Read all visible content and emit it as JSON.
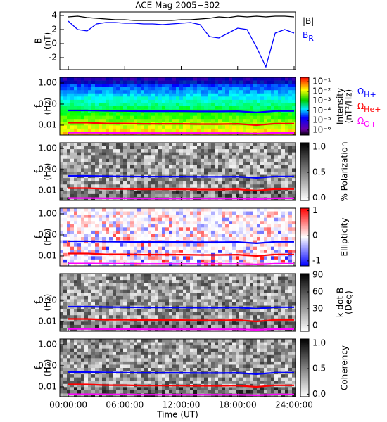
{
  "chart_data": [
    {
      "type": "line",
      "title": "ACE Mag 2005−302",
      "ylabel": [
        "B",
        "(nT)"
      ],
      "x": [
        0,
        1,
        2,
        3,
        4,
        5,
        6,
        7,
        8,
        9,
        10,
        11,
        12,
        13,
        14,
        15,
        16,
        17,
        18,
        19,
        20,
        21,
        22,
        23,
        24
      ],
      "xlim": [
        -0.9,
        24.15
      ],
      "ylim": [
        -3.7,
        4.5
      ],
      "yticks": [
        -2,
        0,
        2,
        4
      ],
      "series": [
        {
          "name": "|B|",
          "color": "#000000",
          "values": [
            3.8,
            3.9,
            3.7,
            3.6,
            3.5,
            3.4,
            3.4,
            3.3,
            3.3,
            3.3,
            3.3,
            3.3,
            3.4,
            3.4,
            3.5,
            3.6,
            3.8,
            3.7,
            3.9,
            3.8,
            3.9,
            3.8,
            3.9,
            3.9,
            3.8
          ]
        },
        {
          "name": "B",
          "subscript": "R",
          "color": "#0000ff",
          "values": [
            3.2,
            2.0,
            1.8,
            2.8,
            3.0,
            3.0,
            2.9,
            2.9,
            2.8,
            2.8,
            2.7,
            2.8,
            2.9,
            3.0,
            2.7,
            1.0,
            0.8,
            1.5,
            2.2,
            2.0,
            -0.5,
            -3.3,
            1.5,
            2.0,
            1.5
          ]
        }
      ]
    },
    {
      "type": "spectrogram",
      "ylabel": [
        "f",
        "(Hz)"
      ],
      "ylog": true,
      "colormap": "rainbow",
      "x": [
        0,
        2,
        4,
        6,
        8,
        10,
        12,
        14,
        16,
        18,
        20,
        22,
        24
      ],
      "xlim": [
        -0.9,
        24.15
      ],
      "ylim": [
        0.0034,
        1.85
      ],
      "yticks": [
        {
          "value": 1,
          "label": "1.00"
        },
        {
          "value": 0.1,
          "label": "0.10"
        },
        {
          "value": 0.01,
          "label": "0.01"
        }
      ],
      "zlog": true,
      "zlim": [
        3e-07,
        0.28
      ],
      "zticks": [
        {
          "value": 0.1,
          "label": "10⁻¹"
        },
        {
          "value": 0.01,
          "label": "10⁻²"
        },
        {
          "value": 0.001,
          "label": "10⁻³"
        },
        {
          "value": 0.0001,
          "label": "10⁻⁴"
        },
        {
          "value": 1e-05,
          "label": "10⁻⁵"
        },
        {
          "value": 1e-06,
          "label": "10⁻⁶"
        }
      ],
      "zlabel": [
        "Intensity",
        "(nT²/Hz)"
      ],
      "series": [
        {
          "name": "Ω",
          "subscript": "H+",
          "color": "#0000ff",
          "values": [
            0.05,
            0.05,
            0.048,
            0.047,
            0.046,
            0.046,
            0.046,
            0.045,
            0.045,
            0.046,
            0.04,
            0.047,
            0.047
          ]
        },
        {
          "name": "Ω",
          "subscript": "He+",
          "color": "#ff0000",
          "values": [
            0.013,
            0.013,
            0.012,
            0.012,
            0.0115,
            0.0115,
            0.0115,
            0.0112,
            0.0112,
            0.0115,
            0.01,
            0.0118,
            0.0118
          ]
        },
        {
          "name": "Ω",
          "subscript": "O+",
          "color": "#ff00ff",
          "values": [
            0.0044,
            0.0044,
            0.0043,
            0.0043,
            0.0042,
            0.0042,
            0.0042,
            0.0042,
            0.0042,
            0.0042,
            0.004,
            0.0043,
            0.0043
          ]
        }
      ]
    },
    {
      "type": "spectrogram",
      "ylabel": [
        "f",
        "(Hz)"
      ],
      "ylog": true,
      "colormap": "gray",
      "x": [
        0,
        2,
        4,
        6,
        8,
        10,
        12,
        14,
        16,
        18,
        20,
        22,
        24
      ],
      "xlim": [
        -0.9,
        24.15
      ],
      "ylim": [
        0.0034,
        1.85
      ],
      "yticks": [
        {
          "value": 1,
          "label": "1.00"
        },
        {
          "value": 0.1,
          "label": "0.10"
        },
        {
          "value": 0.01,
          "label": "0.01"
        }
      ],
      "zlim": [
        -0.05,
        1.08
      ],
      "zticks": [
        {
          "value": 1,
          "label": "1.0"
        },
        {
          "value": 0.5,
          "label": "0.5"
        },
        {
          "value": 0,
          "label": "0.0"
        }
      ],
      "zlabel": [
        "% Polarization"
      ],
      "series": [
        {
          "color": "#0000ff",
          "values": [
            0.05,
            0.05,
            0.048,
            0.047,
            0.046,
            0.046,
            0.046,
            0.045,
            0.045,
            0.046,
            0.04,
            0.047,
            0.047
          ]
        },
        {
          "color": "#ff0000",
          "values": [
            0.013,
            0.013,
            0.012,
            0.012,
            0.0115,
            0.0115,
            0.0115,
            0.0112,
            0.0112,
            0.0115,
            0.01,
            0.0118,
            0.0118
          ]
        },
        {
          "color": "#ff00ff",
          "values": [
            0.0044,
            0.0044,
            0.0043,
            0.0043,
            0.0042,
            0.0042,
            0.0042,
            0.0042,
            0.0042,
            0.0042,
            0.004,
            0.0043,
            0.0043
          ]
        }
      ]
    },
    {
      "type": "spectrogram",
      "ylabel": [
        "f",
        "(Hz)"
      ],
      "ylog": true,
      "colormap": "redblue",
      "x": [
        0,
        2,
        4,
        6,
        8,
        10,
        12,
        14,
        16,
        18,
        20,
        22,
        24
      ],
      "xlim": [
        -0.9,
        24.15
      ],
      "ylim": [
        0.0034,
        1.85
      ],
      "yticks": [
        {
          "value": 1,
          "label": "1.00"
        },
        {
          "value": 0.1,
          "label": "0.10"
        },
        {
          "value": 0.01,
          "label": "0.01"
        }
      ],
      "zlim": [
        -1.2,
        1.1
      ],
      "zticks": [
        1,
        0,
        -1
      ],
      "zlabel": [
        "Ellipticity"
      ],
      "series": [
        {
          "color": "#0000ff",
          "values": [
            0.05,
            0.05,
            0.048,
            0.047,
            0.046,
            0.046,
            0.046,
            0.045,
            0.045,
            0.046,
            0.04,
            0.047,
            0.047
          ]
        },
        {
          "color": "#ff0000",
          "values": [
            0.013,
            0.013,
            0.012,
            0.012,
            0.0115,
            0.0115,
            0.0115,
            0.0112,
            0.0112,
            0.0115,
            0.01,
            0.0118,
            0.0118
          ]
        },
        {
          "color": "#ff00ff",
          "values": [
            0.0044,
            0.0044,
            0.0043,
            0.0043,
            0.0042,
            0.0042,
            0.0042,
            0.0042,
            0.0042,
            0.0042,
            0.004,
            0.0043,
            0.0043
          ]
        }
      ]
    },
    {
      "type": "spectrogram",
      "ylabel": [
        "f",
        "(Hz)"
      ],
      "ylog": true,
      "colormap": "gray",
      "x": [
        0,
        2,
        4,
        6,
        8,
        10,
        12,
        14,
        16,
        18,
        20,
        22,
        24
      ],
      "xlim": [
        -0.9,
        24.15
      ],
      "ylim": [
        0.0034,
        1.85
      ],
      "yticks": [
        {
          "value": 0.1,
          "label": "0.10"
        },
        {
          "value": 0.01,
          "label": "0.01"
        }
      ],
      "zlim": [
        -10,
        92.5
      ],
      "zticks": [
        90,
        60,
        30,
        0
      ],
      "zlabel": [
        "k dot B",
        "(Deg)"
      ],
      "series": [
        {
          "color": "#0000ff",
          "values": [
            0.05,
            0.05,
            0.048,
            0.047,
            0.046,
            0.046,
            0.046,
            0.045,
            0.045,
            0.046,
            0.04,
            0.047,
            0.047
          ]
        },
        {
          "color": "#ff0000",
          "values": [
            0.013,
            0.013,
            0.012,
            0.012,
            0.0115,
            0.0115,
            0.0115,
            0.0112,
            0.0112,
            0.0115,
            0.01,
            0.0118,
            0.0118
          ]
        },
        {
          "color": "#ff00ff",
          "values": [
            0.0044,
            0.0044,
            0.0043,
            0.0043,
            0.0042,
            0.0042,
            0.0042,
            0.0042,
            0.0042,
            0.0042,
            0.004,
            0.0043,
            0.0043
          ]
        }
      ]
    },
    {
      "type": "spectrogram",
      "ylabel": [
        "f",
        "(Hz)"
      ],
      "ylog": true,
      "colormap": "gray",
      "x": [
        0,
        2,
        4,
        6,
        8,
        10,
        12,
        14,
        16,
        18,
        20,
        22,
        24
      ],
      "xlim": [
        -0.9,
        24.15
      ],
      "ylim": [
        0.0034,
        1.85
      ],
      "yticks": [
        {
          "value": 1,
          "label": "1.00"
        },
        {
          "value": 0.1,
          "label": "0.10"
        },
        {
          "value": 0.01,
          "label": "0.01"
        }
      ],
      "zlim": [
        -0.05,
        1.08
      ],
      "zticks": [
        {
          "value": 1,
          "label": "1.0"
        },
        {
          "value": 0.5,
          "label": "0.5"
        },
        {
          "value": 0,
          "label": "0.0"
        }
      ],
      "zlabel": [
        "Coherency"
      ],
      "xticks": [
        {
          "value": 0,
          "label": "00:00:00"
        },
        {
          "value": 6,
          "label": "06:00:00"
        },
        {
          "value": 12,
          "label": "12:00:00"
        },
        {
          "value": 18,
          "label": "18:00:00"
        },
        {
          "value": 24,
          "label": "24:00:00"
        }
      ],
      "xlabel": "Time (UT)",
      "series": [
        {
          "color": "#0000ff",
          "values": [
            0.05,
            0.05,
            0.048,
            0.047,
            0.046,
            0.046,
            0.046,
            0.045,
            0.045,
            0.046,
            0.04,
            0.047,
            0.047
          ]
        },
        {
          "color": "#ff0000",
          "values": [
            0.013,
            0.013,
            0.012,
            0.012,
            0.0115,
            0.0115,
            0.0115,
            0.0112,
            0.0112,
            0.0115,
            0.01,
            0.0118,
            0.0118
          ]
        },
        {
          "color": "#ff00ff",
          "values": [
            0.0044,
            0.0044,
            0.0043,
            0.0043,
            0.0042,
            0.0042,
            0.0042,
            0.0042,
            0.0042,
            0.0042,
            0.004,
            0.0043,
            0.0043
          ]
        }
      ]
    }
  ]
}
